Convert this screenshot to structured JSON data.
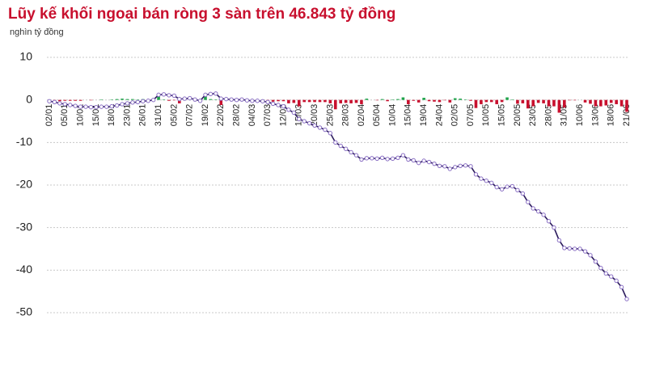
{
  "chart_data": {
    "type": "combo",
    "title": "Lũy kế khối ngoại bán ròng 3 sàn trên 46.843 tỷ đồng",
    "subtitle": "nghìn tỷ đồng",
    "categories": [
      "02/01",
      null,
      null,
      "05/01",
      null,
      null,
      "10/01",
      null,
      null,
      "15/01",
      null,
      null,
      "18/01",
      null,
      null,
      "23/01",
      null,
      null,
      "26/01",
      null,
      null,
      "31/01",
      null,
      null,
      "05/02",
      null,
      null,
      "07/02",
      null,
      null,
      "19/02",
      null,
      null,
      "22/02",
      null,
      null,
      "28/02",
      null,
      null,
      "04/03",
      null,
      null,
      "07/03",
      null,
      null,
      "12/03",
      null,
      null,
      "15/03",
      null,
      null,
      "20/03",
      null,
      null,
      "25/03",
      null,
      null,
      "28/03",
      null,
      null,
      "02/04",
      null,
      null,
      "05/04",
      null,
      null,
      "10/04",
      null,
      null,
      "15/04",
      null,
      null,
      "19/04",
      null,
      null,
      "24/04",
      null,
      null,
      "02/05",
      null,
      null,
      "07/05",
      null,
      null,
      "10/05",
      null,
      null,
      "15/05",
      null,
      null,
      "20/05",
      null,
      null,
      "23/05",
      null,
      null,
      "28/05",
      null,
      null,
      "31/05",
      null,
      null,
      "10/06",
      null,
      null,
      "13/06",
      null,
      null,
      "18/06",
      null,
      null,
      "21/06"
    ],
    "series": [
      {
        "type": "bar",
        "color": "#c8102e",
        "up_color": "#1fa34a",
        "values": [
          -0.3,
          -0.2,
          -0.3,
          -0.2,
          -0.2,
          -0.2,
          -0.2,
          0.0,
          -0.1,
          0.0,
          0.1,
          0.0,
          0.1,
          0.2,
          0.3,
          0.2,
          0.2,
          0.1,
          0.2,
          0.1,
          0.2,
          1.2,
          0.1,
          -0.2,
          -0.1,
          -0.8,
          0.1,
          0.1,
          -0.3,
          -0.3,
          1.4,
          0.2,
          0.1,
          -1.2,
          -0.1,
          -0.1,
          -0.1,
          0.1,
          -0.2,
          -0.1,
          0.0,
          -0.1,
          -0.2,
          -0.4,
          -0.3,
          -0.3,
          -0.8,
          -0.7,
          -1.5,
          -0.5,
          -0.5,
          -0.5,
          -0.5,
          -0.5,
          -0.8,
          -2.2,
          -0.8,
          -0.7,
          -0.8,
          -0.7,
          -1.0,
          0.3,
          0.0,
          -0.1,
          0.2,
          -0.3,
          0.1,
          0.2,
          0.6,
          -1.0,
          -0.2,
          -0.6,
          0.5,
          -0.3,
          -0.4,
          -0.5,
          -0.1,
          -0.6,
          0.4,
          0.3,
          0.1,
          -0.2,
          -1.9,
          -1.0,
          -0.5,
          -0.5,
          -1.0,
          -0.5,
          0.6,
          0.1,
          -0.9,
          -0.8,
          -2.0,
          -1.5,
          -0.7,
          -0.8,
          -1.5,
          -1.5,
          -3.0,
          -1.8,
          -0.1,
          -0.1,
          0.0,
          -0.6,
          -0.9,
          -1.5,
          -1.5,
          -1.3,
          -0.7,
          -1.0,
          -1.5,
          -2.8
        ]
      },
      {
        "type": "line",
        "color": "#2b1b5c",
        "marker_color": "#8a6fc4",
        "values": [
          -0.3,
          -0.5,
          -0.8,
          -1.0,
          -1.2,
          -1.4,
          -1.6,
          -1.6,
          -1.7,
          -1.7,
          -1.6,
          -1.6,
          -1.5,
          -1.3,
          -1.0,
          -0.8,
          -0.6,
          -0.5,
          -0.3,
          -0.2,
          0.0,
          1.2,
          1.3,
          1.1,
          1.0,
          0.2,
          0.3,
          0.4,
          0.1,
          -0.2,
          1.2,
          1.4,
          1.5,
          0.3,
          0.2,
          0.1,
          0.0,
          0.1,
          -0.1,
          -0.2,
          -0.2,
          -0.3,
          -0.5,
          -0.9,
          -1.2,
          -1.5,
          -2.3,
          -3.0,
          -4.5,
          -5.0,
          -5.5,
          -6.0,
          -6.5,
          -7.0,
          -7.8,
          -10.0,
          -10.8,
          -11.5,
          -12.3,
          -13.0,
          -14.0,
          -13.7,
          -13.7,
          -13.8,
          -13.6,
          -13.9,
          -13.8,
          -13.6,
          -13.0,
          -14.0,
          -14.2,
          -14.8,
          -14.3,
          -14.6,
          -15.0,
          -15.5,
          -15.6,
          -16.2,
          -15.8,
          -15.5,
          -15.4,
          -15.6,
          -17.5,
          -18.5,
          -19.0,
          -19.5,
          -20.5,
          -21.0,
          -20.4,
          -20.3,
          -21.2,
          -22.0,
          -24.0,
          -25.5,
          -26.2,
          -27.0,
          -28.5,
          -30.0,
          -33.0,
          -34.8,
          -34.9,
          -35.0,
          -35.0,
          -35.6,
          -36.5,
          -38.0,
          -39.5,
          -40.8,
          -41.5,
          -42.5,
          -44.0,
          -46.8
        ]
      }
    ],
    "ylim": [
      -52,
      12
    ],
    "yticks": [
      10,
      0,
      -10,
      -20,
      -30,
      -40,
      -50
    ],
    "grid": true
  }
}
